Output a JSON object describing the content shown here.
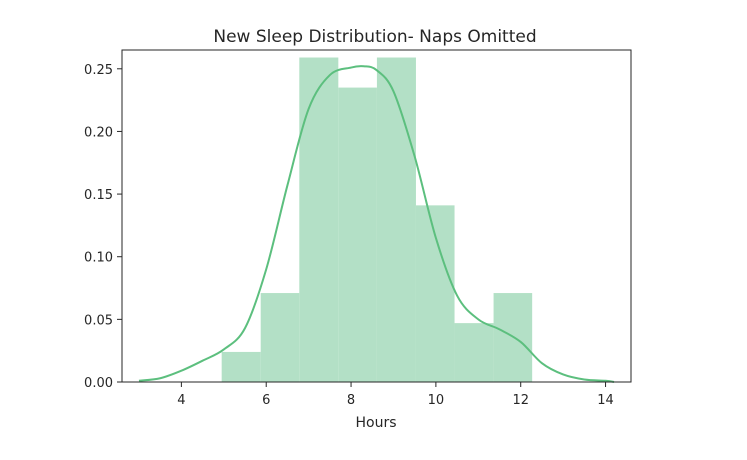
{
  "chart_data": {
    "type": "bar",
    "title": "New Sleep Distribution- Naps Omitted",
    "xlabel": "Hours",
    "ylabel": "",
    "xlim": [
      2.6,
      14.6
    ],
    "ylim": [
      0,
      0.265
    ],
    "xticks": [
      4,
      6,
      8,
      10,
      12,
      14
    ],
    "yticks": [
      0.0,
      0.05,
      0.1,
      0.15,
      0.2,
      0.25
    ],
    "ytick_labels": [
      "0.00",
      "0.05",
      "0.10",
      "0.15",
      "0.20",
      "0.25"
    ],
    "grid": false,
    "bar_color": "#b3e0c6",
    "line_color": "#5cbf7e",
    "histogram": {
      "bin_edges": [
        4.95,
        5.87,
        6.78,
        7.7,
        8.61,
        9.53,
        10.44,
        11.36,
        12.27
      ],
      "density": [
        0.024,
        0.071,
        0.259,
        0.235,
        0.259,
        0.141,
        0.047,
        0.071
      ]
    },
    "kde": {
      "x": [
        3.0,
        3.5,
        4.0,
        4.5,
        5.0,
        5.5,
        6.0,
        6.5,
        7.0,
        7.5,
        8.0,
        8.3,
        8.6,
        9.0,
        9.5,
        10.0,
        10.5,
        11.0,
        11.5,
        12.0,
        12.5,
        13.0,
        13.5,
        14.0,
        14.2
      ],
      "y": [
        0.001,
        0.003,
        0.009,
        0.017,
        0.026,
        0.043,
        0.09,
        0.157,
        0.218,
        0.245,
        0.251,
        0.252,
        0.249,
        0.232,
        0.18,
        0.115,
        0.069,
        0.05,
        0.042,
        0.032,
        0.015,
        0.006,
        0.002,
        0.001,
        0.0
      ]
    }
  }
}
